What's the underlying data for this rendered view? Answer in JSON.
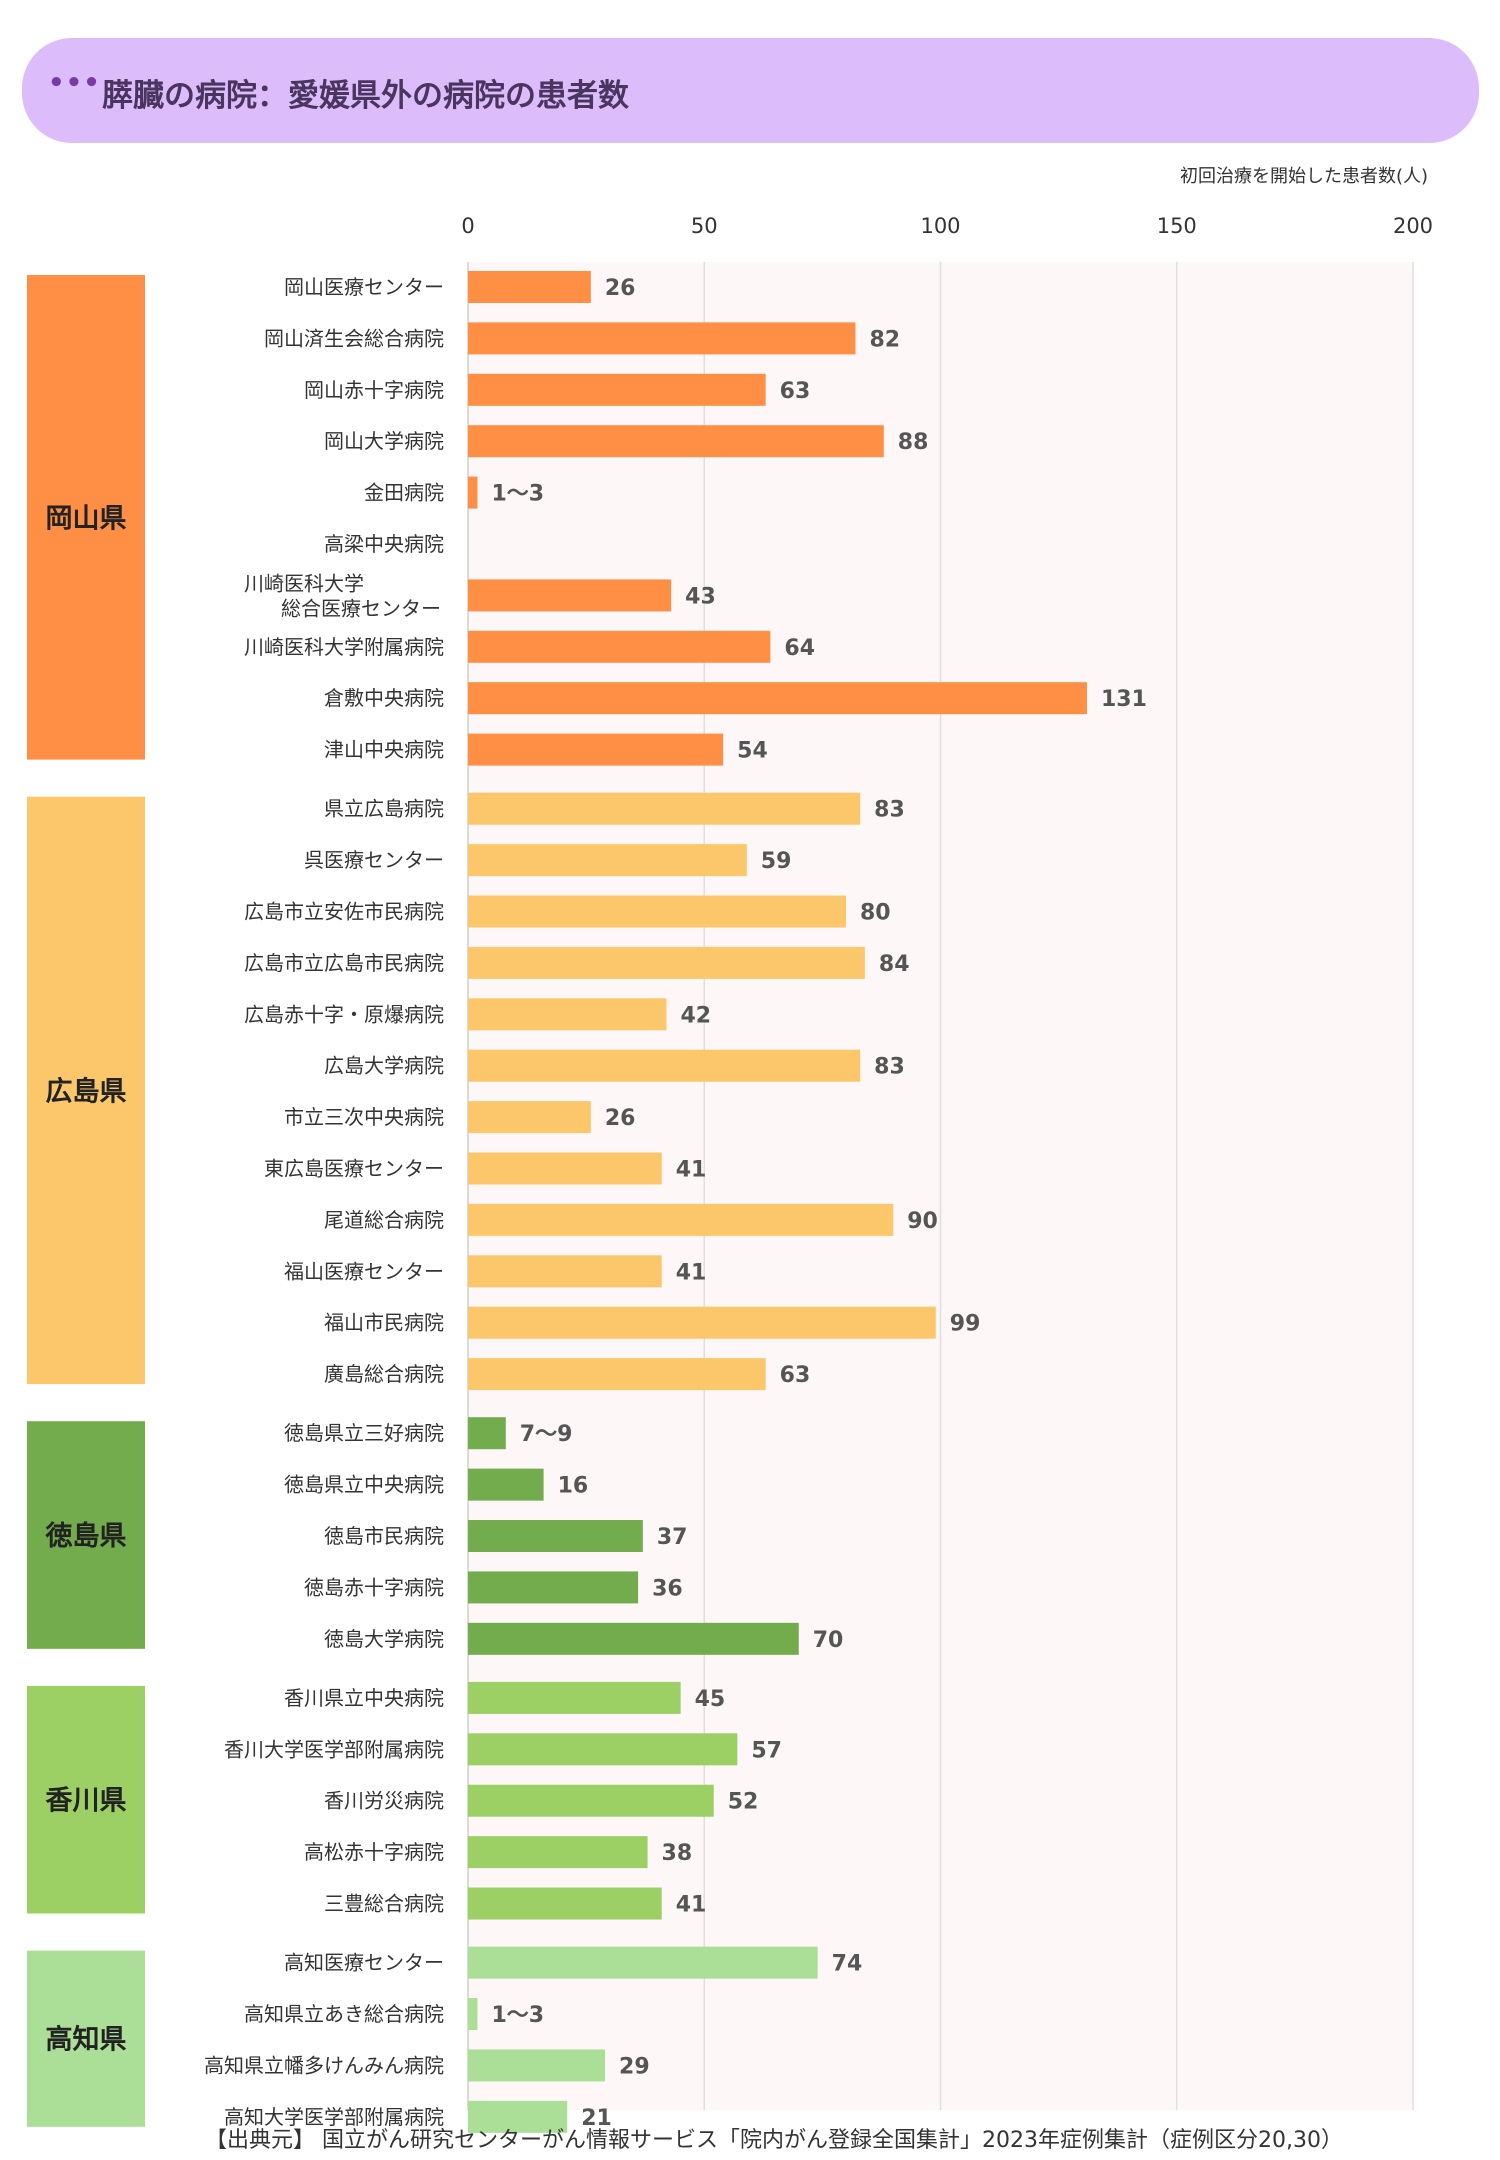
{
  "header": {
    "dots": "•••",
    "title": "膵臓の病院：愛媛県外の病院の患者数"
  },
  "footer": {
    "source": "【出典元】 国立がん研究センターがん情報サービス「院内がん登録全国集計」2023年症例集計（症例区分20,30）"
  },
  "chart_data": {
    "type": "bar",
    "orientation": "horizontal",
    "title": "膵臓の病院：愛媛県外の病院の患者数",
    "xlabel": "初回治療を開始した患者数(人)",
    "xlim": [
      0,
      200
    ],
    "x_ticks": [
      0,
      50,
      100,
      150,
      200
    ],
    "grid": true,
    "groups": [
      {
        "name": "岡山県",
        "color": "#fe8f45",
        "items": [
          {
            "label": "岡山医療センター",
            "value": 26,
            "display": "26"
          },
          {
            "label": "岡山済生会総合病院",
            "value": 82,
            "display": "82"
          },
          {
            "label": "岡山赤十字病院",
            "value": 63,
            "display": "63"
          },
          {
            "label": "岡山大学病院",
            "value": 88,
            "display": "88"
          },
          {
            "label": "金田病院",
            "value": 2,
            "display": "1～3"
          },
          {
            "label": "高梁中央病院",
            "value": null,
            "display": ""
          },
          {
            "label": "川崎医科大学\n総合医療センター",
            "value": 43,
            "display": "43"
          },
          {
            "label": "川崎医科大学附属病院",
            "value": 64,
            "display": "64"
          },
          {
            "label": "倉敷中央病院",
            "value": 131,
            "display": "131"
          },
          {
            "label": "津山中央病院",
            "value": 54,
            "display": "54"
          }
        ]
      },
      {
        "name": "広島県",
        "color": "#fcc76b",
        "items": [
          {
            "label": "県立広島病院",
            "value": 83,
            "display": "83"
          },
          {
            "label": "呉医療センター",
            "value": 59,
            "display": "59"
          },
          {
            "label": "広島市立安佐市民病院",
            "value": 80,
            "display": "80"
          },
          {
            "label": "広島市立広島市民病院",
            "value": 84,
            "display": "84"
          },
          {
            "label": "広島赤十字・原爆病院",
            "value": 42,
            "display": "42"
          },
          {
            "label": "広島大学病院",
            "value": 83,
            "display": "83"
          },
          {
            "label": "市立三次中央病院",
            "value": 26,
            "display": "26"
          },
          {
            "label": "東広島医療センター",
            "value": 41,
            "display": "41"
          },
          {
            "label": "尾道総合病院",
            "value": 90,
            "display": "90"
          },
          {
            "label": "福山医療センター",
            "value": 41,
            "display": "41"
          },
          {
            "label": "福山市民病院",
            "value": 99,
            "display": "99"
          },
          {
            "label": "廣島総合病院",
            "value": 63,
            "display": "63"
          }
        ]
      },
      {
        "name": "徳島県",
        "color": "#72ac4c",
        "items": [
          {
            "label": "徳島県立三好病院",
            "value": 8,
            "display": "7～9"
          },
          {
            "label": "徳島県立中央病院",
            "value": 16,
            "display": "16"
          },
          {
            "label": "徳島市民病院",
            "value": 37,
            "display": "37"
          },
          {
            "label": "徳島赤十字病院",
            "value": 36,
            "display": "36"
          },
          {
            "label": "徳島大学病院",
            "value": 70,
            "display": "70"
          }
        ]
      },
      {
        "name": "香川県",
        "color": "#9ccf64",
        "items": [
          {
            "label": "香川県立中央病院",
            "value": 45,
            "display": "45"
          },
          {
            "label": "香川大学医学部附属病院",
            "value": 57,
            "display": "57"
          },
          {
            "label": "香川労災病院",
            "value": 52,
            "display": "52"
          },
          {
            "label": "高松赤十字病院",
            "value": 38,
            "display": "38"
          },
          {
            "label": "三豊総合病院",
            "value": 41,
            "display": "41"
          }
        ]
      },
      {
        "name": "高知県",
        "color": "#abdf97",
        "items": [
          {
            "label": "高知医療センター",
            "value": 74,
            "display": "74"
          },
          {
            "label": "高知県立あき総合病院",
            "value": 2,
            "display": "1～3"
          },
          {
            "label": "高知県立幡多けんみん病院",
            "value": 29,
            "display": "29"
          },
          {
            "label": "高知大学医学部附属病院",
            "value": 21,
            "display": "21"
          }
        ]
      }
    ]
  }
}
